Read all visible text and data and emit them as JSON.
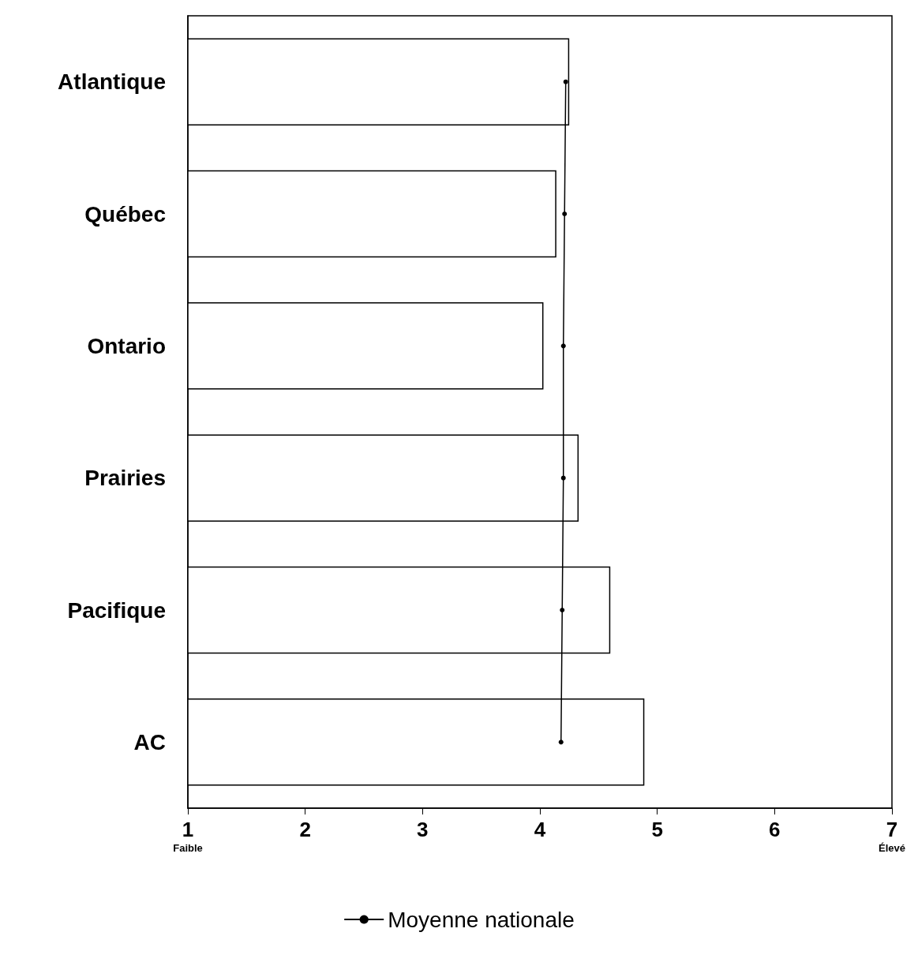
{
  "chart_data": {
    "type": "bar",
    "orientation": "horizontal",
    "categories": [
      "Atlantique",
      "Québec",
      "Ontario",
      "Prairies",
      "Pacifique",
      "AC"
    ],
    "series": [
      {
        "color": "#ffffff",
        "values": [
          4.25,
          4.14,
          4.03,
          4.33,
          4.6,
          4.89
        ]
      },
      {
        "type": "line",
        "name": "Moyenne nationale",
        "color": "#000000",
        "values": [
          4.22,
          4.21,
          4.2,
          4.2,
          4.19,
          4.18
        ]
      }
    ],
    "xlim": [
      1,
      7
    ],
    "xticks": [
      {
        "value": 1,
        "label": "1\nFaible"
      },
      2,
      3,
      4,
      5,
      6,
      {
        "value": 7,
        "label": "7\nÉlevé"
      }
    ],
    "grid": false,
    "legend": "bottom",
    "marker": "circle",
    "line_style": "solid"
  }
}
